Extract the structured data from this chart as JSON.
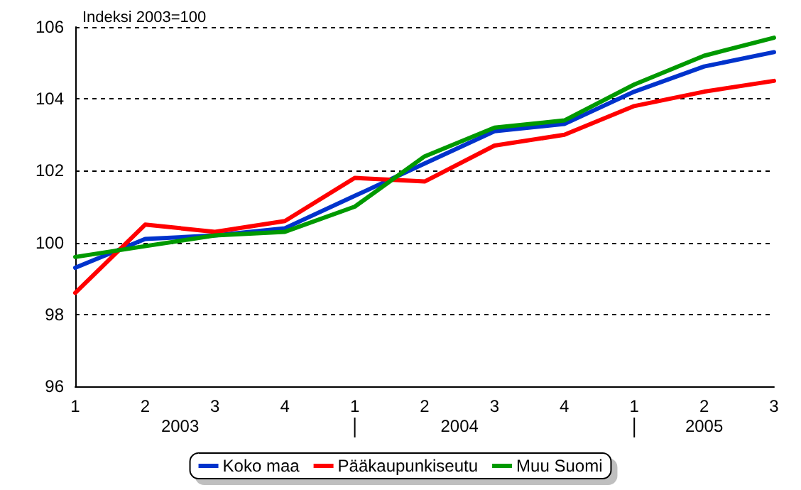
{
  "chart_data": {
    "type": "line",
    "title": "Indeksi 2003=100",
    "categories": [
      "1",
      "2",
      "3",
      "4",
      "1",
      "2",
      "3",
      "4",
      "1",
      "2",
      "3"
    ],
    "annotations": [
      "2003",
      "2004",
      "2005"
    ],
    "series": [
      {
        "name": "Koko maa",
        "color": "#0033cc",
        "values": [
          99.3,
          100.1,
          100.2,
          100.4,
          101.3,
          102.2,
          103.1,
          103.3,
          104.2,
          104.9,
          105.3
        ]
      },
      {
        "name": "Pääkaupunkiseutu",
        "color": "#ff0000",
        "values": [
          98.6,
          100.5,
          100.3,
          100.6,
          101.8,
          101.7,
          102.7,
          103.0,
          103.8,
          104.2,
          104.5
        ]
      },
      {
        "name": "Muu Suomi",
        "color": "#009900",
        "values": [
          99.6,
          99.9,
          100.2,
          100.3,
          101.0,
          102.4,
          103.2,
          103.4,
          104.4,
          105.2,
          105.7
        ]
      }
    ],
    "ylim": [
      96,
      106
    ],
    "yticks": [
      96,
      98,
      100,
      102,
      104,
      106
    ],
    "grid": "y",
    "legend": "bottom",
    "marker": "none",
    "line_style": "solid"
  }
}
